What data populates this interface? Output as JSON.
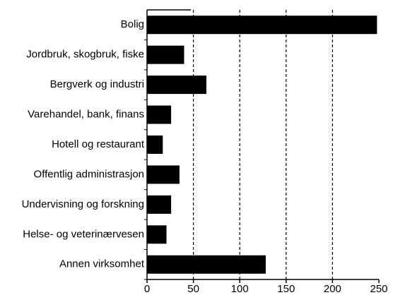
{
  "chart_data": {
    "type": "bar",
    "orientation": "horizontal",
    "categories": [
      "Bolig",
      "Jordbruk, skogbruk, fiske",
      "Bergverk og industri",
      "Varehandel, bank, finans",
      "Hotell og restaurant",
      "Offentlig administrasjon",
      "Undervisning og forskning",
      "Helse- og veterinærvesen",
      "Annen virksomhet"
    ],
    "values": [
      248,
      40,
      64,
      26,
      17,
      35,
      26,
      21,
      128
    ],
    "color": "#000000",
    "xlim": [
      0,
      250
    ],
    "xticks": [
      0,
      50,
      100,
      150,
      200,
      250
    ],
    "grid": true
  }
}
